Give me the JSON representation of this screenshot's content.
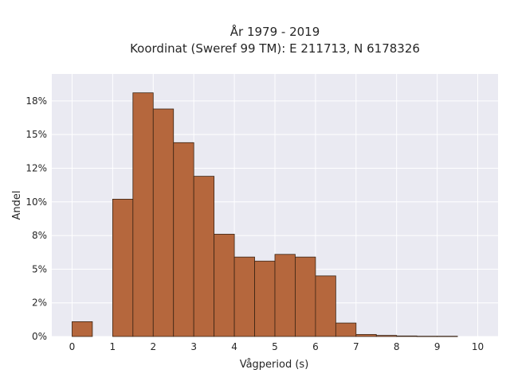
{
  "chart_data": {
    "type": "bar",
    "title": "År 1979 - 2019",
    "subtitle": "Koordinat (Sweref 99 TM): E 211713, N 6178326",
    "xlabel": "Vågperiod (s)",
    "ylabel": "Andel",
    "bin_width": 0.5,
    "bins": [
      {
        "x0": 0.0,
        "x1": 0.5,
        "value": 1.1
      },
      {
        "x0": 0.5,
        "x1": 1.0,
        "value": 0.0
      },
      {
        "x0": 1.0,
        "x1": 1.5,
        "value": 10.2
      },
      {
        "x0": 1.5,
        "x1": 2.0,
        "value": 18.1
      },
      {
        "x0": 2.0,
        "x1": 2.5,
        "value": 16.9
      },
      {
        "x0": 2.5,
        "x1": 3.0,
        "value": 14.4
      },
      {
        "x0": 3.0,
        "x1": 3.5,
        "value": 11.9
      },
      {
        "x0": 3.5,
        "x1": 4.0,
        "value": 7.6
      },
      {
        "x0": 4.0,
        "x1": 4.5,
        "value": 5.9
      },
      {
        "x0": 4.5,
        "x1": 5.0,
        "value": 5.6
      },
      {
        "x0": 5.0,
        "x1": 5.5,
        "value": 6.1
      },
      {
        "x0": 5.5,
        "x1": 6.0,
        "value": 5.9
      },
      {
        "x0": 6.0,
        "x1": 6.5,
        "value": 4.5
      },
      {
        "x0": 6.5,
        "x1": 7.0,
        "value": 1.0
      },
      {
        "x0": 7.0,
        "x1": 7.5,
        "value": 0.15
      },
      {
        "x0": 7.5,
        "x1": 8.0,
        "value": 0.08
      },
      {
        "x0": 8.0,
        "x1": 8.5,
        "value": 0.04
      },
      {
        "x0": 8.5,
        "x1": 9.0,
        "value": 0.02
      },
      {
        "x0": 9.0,
        "x1": 9.5,
        "value": 0.02
      }
    ],
    "xlim": [
      -0.5,
      10.5
    ],
    "ylim": [
      0,
      19.5
    ],
    "xticks": [
      0,
      1,
      2,
      3,
      4,
      5,
      6,
      7,
      8,
      9,
      10
    ],
    "xtick_labels": [
      "0",
      "1",
      "2",
      "3",
      "4",
      "5",
      "6",
      "7",
      "8",
      "9",
      "10"
    ],
    "yticks": [
      0,
      2.5,
      5,
      7.5,
      10,
      12.5,
      15,
      17.5
    ],
    "ytick_labels": [
      "0%",
      "2%",
      "5%",
      "8%",
      "10%",
      "12%",
      "15%",
      "18%"
    ],
    "grid": true,
    "colors": {
      "bar_fill": "#b5673d",
      "bar_edge": "#3a2414",
      "plot_bg": "#eaeaf2",
      "grid": "#ffffff"
    }
  }
}
